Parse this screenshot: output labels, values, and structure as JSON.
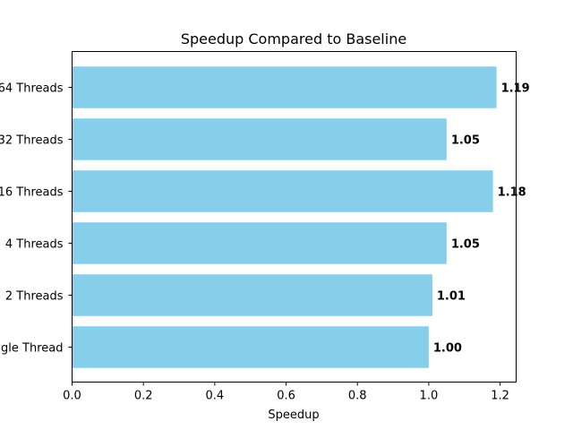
{
  "chart_data": {
    "type": "bar",
    "orientation": "horizontal",
    "title": "Speedup Compared to Baseline",
    "xlabel": "Speedup",
    "ylabel": "",
    "categories": [
      "Single Thread",
      "2 Threads",
      "4 Threads",
      "16 Threads",
      "32 Threads",
      "64 Threads"
    ],
    "values": [
      1.0,
      1.01,
      1.05,
      1.18,
      1.05,
      1.19
    ],
    "value_labels": [
      "1.00",
      "1.01",
      "1.05",
      "1.18",
      "1.05",
      "1.19"
    ],
    "xlim": [
      0,
      1.245
    ],
    "xticks": [
      0.0,
      0.2,
      0.4,
      0.6,
      0.8,
      1.0,
      1.2
    ],
    "xtick_labels": [
      "0.0",
      "0.2",
      "0.4",
      "0.6",
      "0.8",
      "1.0",
      "1.2"
    ],
    "grid": false,
    "bar_color": "#87ceeb"
  }
}
